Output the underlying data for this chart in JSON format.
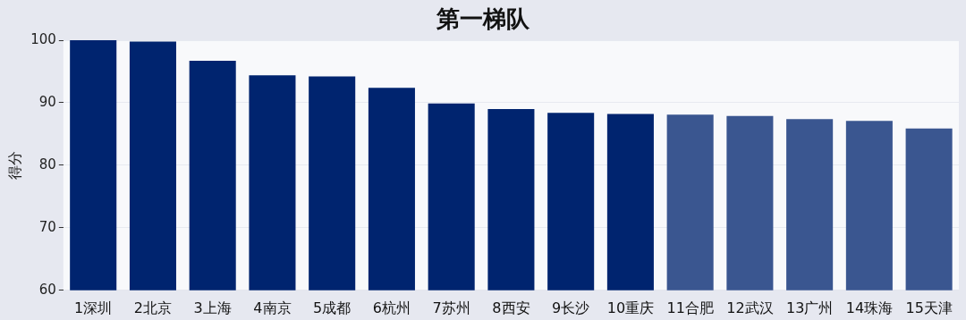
{
  "chart_data": {
    "type": "bar",
    "title": "第一梯队",
    "ylabel": "得分",
    "categories": [
      "1深圳",
      "2北京",
      "3上海",
      "4南京",
      "5成都",
      "6杭州",
      "7苏州",
      "8西安",
      "9长沙",
      "10重庆",
      "11合肥",
      "12武汉",
      "13广州",
      "14珠海",
      "15天津"
    ],
    "values": [
      100,
      99.8,
      96.7,
      94.4,
      94.2,
      92.4,
      89.9,
      89.0,
      88.4,
      88.2,
      88.1,
      87.9,
      87.4,
      87.1,
      85.9
    ],
    "colors": [
      "#00246f",
      "#00246f",
      "#00246f",
      "#00246f",
      "#00246f",
      "#00246f",
      "#00246f",
      "#00246f",
      "#00246f",
      "#00246f",
      "#3a5690",
      "#3a5690",
      "#3a5690",
      "#3a5690",
      "#3a5690"
    ],
    "ylim": [
      60,
      100
    ],
    "yticks": [
      60,
      70,
      80,
      90,
      100
    ],
    "grid": "y"
  }
}
